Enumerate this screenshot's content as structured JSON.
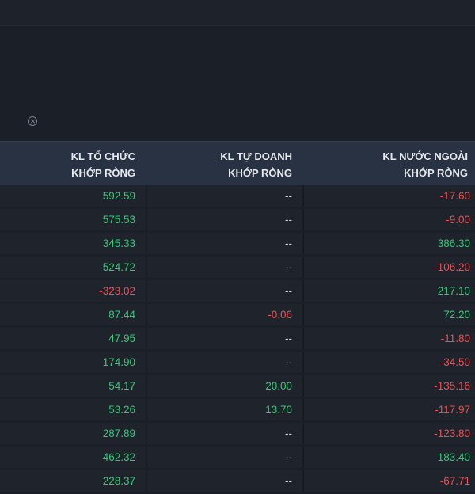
{
  "columns": [
    {
      "line1": "KL TỔ CHỨC",
      "line2": "KHỚP RÒNG"
    },
    {
      "line1": "KL TỰ DOANH",
      "line2": "KHỚP RÒNG"
    },
    {
      "line1": "KL NƯỚC NGOÀI",
      "line2": "KHỚP RÒNG"
    }
  ],
  "rows": [
    [
      "592.59",
      "--",
      "-17.60"
    ],
    [
      "575.53",
      "--",
      "-9.00"
    ],
    [
      "345.33",
      "--",
      "386.30"
    ],
    [
      "524.72",
      "--",
      "-106.20"
    ],
    [
      "-323.02",
      "--",
      "217.10"
    ],
    [
      "87.44",
      "-0.06",
      "72.20"
    ],
    [
      "47.95",
      "--",
      "-11.80"
    ],
    [
      "174.90",
      "--",
      "-34.50"
    ],
    [
      "54.17",
      "20.00",
      "-135.16"
    ],
    [
      "53.26",
      "13.70",
      "-117.97"
    ],
    [
      "287.89",
      "--",
      "-123.80"
    ],
    [
      "462.32",
      "--",
      "183.40"
    ],
    [
      "228.37",
      "--",
      "-67.71"
    ]
  ],
  "colors": {
    "positive": "#2ecc71",
    "negative": "#f04e4e",
    "neutral": "#cfd3da",
    "header_bg": "#283243",
    "row_bg": "#1e232c"
  },
  "icons": {
    "close": "close-icon"
  }
}
